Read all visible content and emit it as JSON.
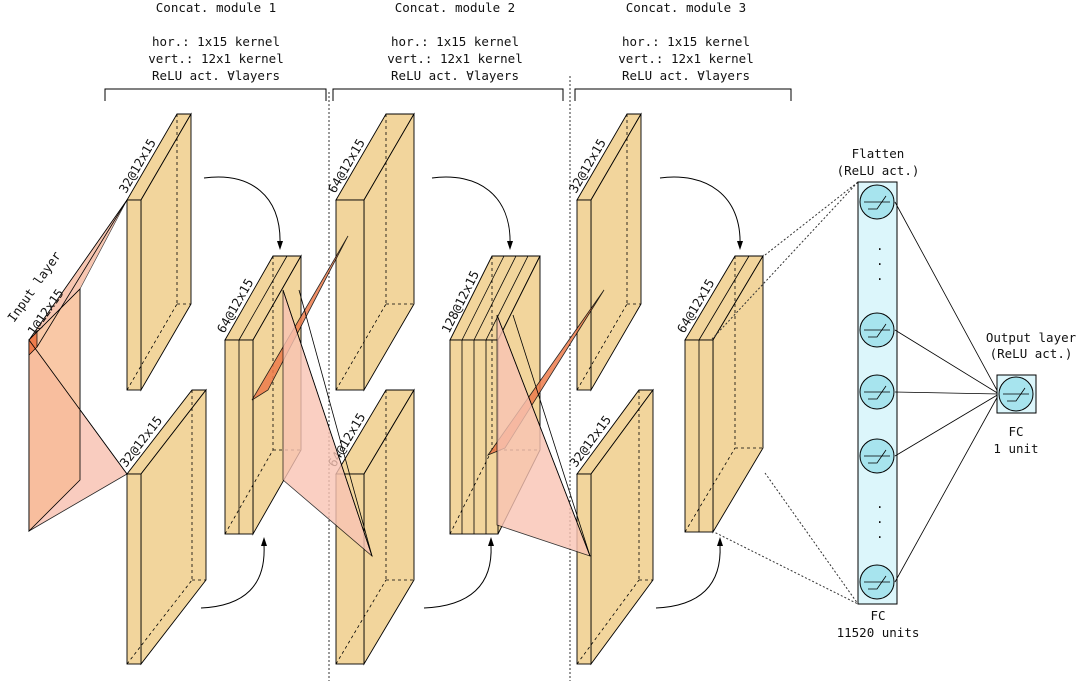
{
  "colors": {
    "block_fill": "#f2d59c",
    "block_fill_dark": "#e8c07e",
    "input_fill": "#f7c8a8",
    "kernel_fill": "#f4a070",
    "kernel_dark": "#ee7c4c",
    "rf_fill": "#f9c4b4",
    "neuron_fill": "#a7e4ee",
    "flatten_bg": "#dcf6fb"
  },
  "modules": [
    {
      "title": "Concat. module 1",
      "line1": "hor.: 1x15 kernel",
      "line2": "vert.: 12x1 kernel",
      "line3": "ReLU act. ∀layers"
    },
    {
      "title": "Concat. module 2",
      "line1": "hor.: 1x15 kernel",
      "line2": "vert.: 12x1 kernel",
      "line3": "ReLU act. ∀layers"
    },
    {
      "title": "Concat. module 3",
      "line1": "hor.: 1x15 kernel",
      "line2": "vert.: 12x1 kernel",
      "line3": "ReLU act. ∀layers"
    }
  ],
  "input_layer": {
    "title": "Input layer",
    "shape": "1@12x15"
  },
  "blocks": {
    "m1_top": "32@12x15",
    "m1_bottom": "32@12x15",
    "m1_concat": "64@12x15",
    "m2_top": "64@12x15",
    "m2_bottom": "64@12x15",
    "m2_concat": "128@12x15",
    "m3_top": "32@12x15",
    "m3_bottom": "32@12x15",
    "m3_concat": "64@12x15"
  },
  "flatten": {
    "title": "Flatten",
    "activation": "(ReLU act.)",
    "fc_label": "FC",
    "units": "11520 units",
    "ellipsis": "."
  },
  "output": {
    "title": "Output layer",
    "activation": "(ReLU act.)",
    "fc_label": "FC",
    "units": "1 unit"
  }
}
